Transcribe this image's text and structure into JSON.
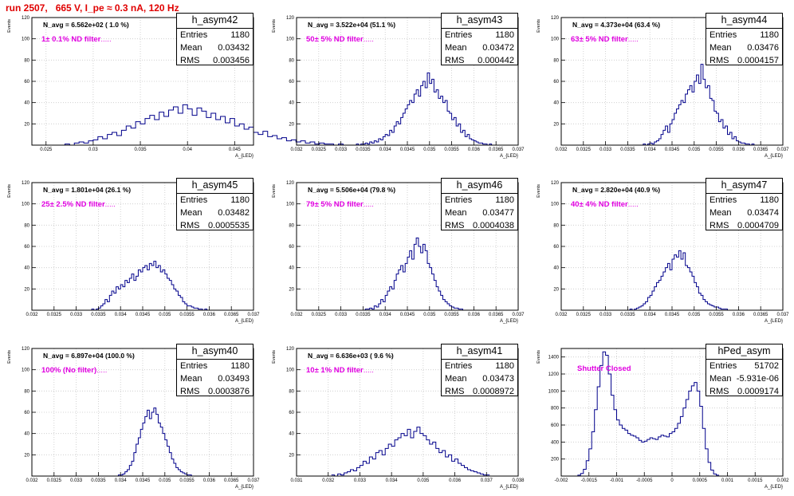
{
  "page_title": "run 2507,   665 V, I_pe ≈ 0.3 nA, 120 Hz",
  "colors": {
    "title": "#e00000",
    "hist_line": "#00008b",
    "grid": "#c8c8c8",
    "annotation": "#e000e0"
  },
  "chart_data": [
    {
      "type": "histogram",
      "title": "h_asym42",
      "ylabel": "Events",
      "xlabel": "A_{LED}",
      "xlim": [
        0.0235,
        0.047
      ],
      "ylim": [
        0,
        120
      ],
      "xticks": [
        0.025,
        0.03,
        0.035,
        0.04,
        0.045
      ],
      "xtick_labels": [
        "0.025",
        "0.03",
        "0.035",
        "0.04",
        "0.045"
      ],
      "yticks": [
        20,
        40,
        60,
        80,
        100,
        120
      ],
      "stats": {
        "Entries": "1180",
        "Mean": "0.03432",
        "RMS": "0.003456"
      },
      "navg_text": "N_avg = 6.562e+02 ( 1.0 %)",
      "filter_text": "1± 0.1% ND filter",
      "bins": {
        "start": 0.025,
        "width": 0.0005,
        "counts": [
          0,
          0,
          0,
          0,
          1,
          0,
          2,
          3,
          2,
          4,
          5,
          8,
          6,
          10,
          12,
          9,
          14,
          18,
          16,
          22,
          20,
          25,
          28,
          24,
          31,
          27,
          33,
          36,
          30,
          38,
          34,
          28,
          35,
          32,
          26,
          30,
          24,
          27,
          21,
          25,
          18,
          20,
          15,
          17,
          12,
          10,
          13,
          8,
          9,
          6,
          7,
          4,
          5,
          3,
          4,
          2,
          3,
          1,
          2,
          1,
          1,
          0,
          1,
          0,
          0,
          0,
          0,
          0,
          0,
          0
        ]
      },
      "grid": true
    },
    {
      "type": "histogram",
      "title": "h_asym43",
      "ylabel": "Events",
      "xlabel": "A_{LED}",
      "xlim": [
        0.032,
        0.037
      ],
      "ylim": [
        0,
        120
      ],
      "xticks": [
        0.032,
        0.0325,
        0.033,
        0.0335,
        0.034,
        0.0345,
        0.035,
        0.0355,
        0.036,
        0.0365,
        0.037
      ],
      "xtick_labels": [
        "0.032",
        "0.0325",
        "0.033",
        "0.0335",
        "0.034",
        "0.0345",
        "0.035",
        "0.0355",
        "0.036",
        "0.0365",
        "0.037"
      ],
      "yticks": [
        20,
        40,
        60,
        80,
        100,
        120
      ],
      "stats": {
        "Entries": "1180",
        "Mean": "0.03472",
        "RMS": "0.000442"
      },
      "navg_text": "N_avg = 3.522e+04 (51.1 %)",
      "filter_text": "50± 5% ND filter",
      "bins": {
        "start": 0.0333,
        "width": 5e-05,
        "counts": [
          0,
          1,
          0,
          1,
          1,
          2,
          1,
          3,
          2,
          4,
          3,
          6,
          5,
          8,
          10,
          9,
          14,
          12,
          18,
          22,
          20,
          26,
          30,
          34,
          38,
          42,
          40,
          48,
          52,
          46,
          56,
          60,
          54,
          68,
          58,
          62,
          50,
          52,
          44,
          46,
          40,
          42,
          32,
          30,
          24,
          26,
          18,
          20,
          12,
          14,
          8,
          10,
          6,
          5,
          4,
          3,
          2,
          2,
          1,
          1,
          0,
          1,
          0,
          0,
          0
        ]
      },
      "grid": true
    },
    {
      "type": "histogram",
      "title": "h_asym44",
      "ylabel": "Events",
      "xlabel": "A_{LED}",
      "xlim": [
        0.032,
        0.037
      ],
      "ylim": [
        0,
        120
      ],
      "xticks": [
        0.032,
        0.0325,
        0.033,
        0.0335,
        0.034,
        0.0345,
        0.035,
        0.0355,
        0.036,
        0.0365,
        0.037
      ],
      "xtick_labels": [
        "0.032",
        "0.0325",
        "0.033",
        "0.0335",
        "0.034",
        "0.0345",
        "0.035",
        "0.0355",
        "0.036",
        "0.0365",
        "0.037"
      ],
      "yticks": [
        20,
        40,
        60,
        80,
        100,
        120
      ],
      "stats": {
        "Entries": "1180",
        "Mean": "0.03476",
        "RMS": "0.0004157"
      },
      "navg_text": "N_avg = 4.373e+04 (63.4 %)",
      "filter_text": "63± 5% ND filter",
      "bins": {
        "start": 0.0338,
        "width": 5e-05,
        "counts": [
          0,
          1,
          0,
          1,
          2,
          1,
          3,
          4,
          6,
          10,
          14,
          18,
          12,
          20,
          24,
          30,
          34,
          38,
          42,
          40,
          48,
          52,
          56,
          50,
          60,
          66,
          58,
          76,
          62,
          54,
          56,
          44,
          42,
          32,
          30,
          22,
          24,
          16,
          18,
          10,
          12,
          6,
          8,
          4,
          3,
          2,
          2,
          1,
          1,
          0,
          1,
          0,
          0
        ]
      },
      "grid": true
    },
    {
      "type": "histogram",
      "title": "h_asym45",
      "ylabel": "Events",
      "xlabel": "A_{LED}",
      "xlim": [
        0.032,
        0.037
      ],
      "ylim": [
        0,
        120
      ],
      "xticks": [
        0.032,
        0.0325,
        0.033,
        0.0335,
        0.034,
        0.0345,
        0.035,
        0.0355,
        0.036,
        0.0365,
        0.037
      ],
      "xtick_labels": [
        "0.032",
        "0.0325",
        "0.033",
        "0.0335",
        "0.034",
        "0.0345",
        "0.035",
        "0.0355",
        "0.036",
        "0.0365",
        "0.037"
      ],
      "yticks": [
        20,
        40,
        60,
        80,
        100,
        120
      ],
      "stats": {
        "Entries": "1180",
        "Mean": "0.03482",
        "RMS": "0.0005535"
      },
      "navg_text": "N_avg = 1.801e+04 (26.1 %)",
      "filter_text": "25± 2.5% ND filter",
      "bins": {
        "start": 0.0333,
        "width": 5e-05,
        "counts": [
          0,
          1,
          0,
          1,
          2,
          4,
          6,
          10,
          8,
          14,
          18,
          16,
          22,
          20,
          24,
          22,
          28,
          26,
          30,
          34,
          28,
          32,
          38,
          36,
          40,
          42,
          38,
          44,
          42,
          46,
          40,
          42,
          36,
          38,
          34,
          30,
          28,
          24,
          20,
          18,
          14,
          12,
          8,
          6,
          4,
          4,
          3,
          2,
          2,
          1,
          1,
          0,
          1,
          0
        ]
      },
      "grid": true
    },
    {
      "type": "histogram",
      "title": "h_asym46",
      "ylabel": "Events",
      "xlabel": "A_{LED}",
      "xlim": [
        0.032,
        0.037
      ],
      "ylim": [
        0,
        120
      ],
      "xticks": [
        0.032,
        0.0325,
        0.033,
        0.0335,
        0.034,
        0.0345,
        0.035,
        0.0355,
        0.036,
        0.0365,
        0.037
      ],
      "xtick_labels": [
        "0.032",
        "0.0325",
        "0.033",
        "0.0335",
        "0.034",
        "0.0345",
        "0.035",
        "0.0355",
        "0.036",
        "0.0365",
        "0.037"
      ],
      "yticks": [
        20,
        40,
        60,
        80,
        100,
        120
      ],
      "stats": {
        "Entries": "1180",
        "Mean": "0.03477",
        "RMS": "0.0004038"
      },
      "navg_text": "N_avg = 5.506e+04 (79.8 %)",
      "filter_text": "79± 5% ND filter",
      "bins": {
        "start": 0.0335,
        "width": 5e-05,
        "counts": [
          0,
          1,
          1,
          2,
          1,
          4,
          3,
          6,
          10,
          8,
          14,
          18,
          22,
          20,
          28,
          34,
          38,
          42,
          36,
          44,
          50,
          56,
          48,
          62,
          68,
          60,
          54,
          62,
          56,
          44,
          40,
          34,
          28,
          22,
          18,
          14,
          10,
          8,
          6,
          4,
          3,
          2,
          2,
          1,
          1,
          0,
          0
        ]
      },
      "grid": true
    },
    {
      "type": "histogram",
      "title": "h_asym47",
      "ylabel": "Events",
      "xlabel": "A_{LED}",
      "xlim": [
        0.032,
        0.037
      ],
      "ylim": [
        0,
        120
      ],
      "xticks": [
        0.032,
        0.0325,
        0.033,
        0.0335,
        0.034,
        0.0345,
        0.035,
        0.0355,
        0.036,
        0.0365,
        0.037
      ],
      "xtick_labels": [
        "0.032",
        "0.0325",
        "0.033",
        "0.0335",
        "0.034",
        "0.0345",
        "0.035",
        "0.0355",
        "0.036",
        "0.0365",
        "0.037"
      ],
      "yticks": [
        20,
        40,
        60,
        80,
        100,
        120
      ],
      "stats": {
        "Entries": "1180",
        "Mean": "0.03474",
        "RMS": "0.0004709"
      },
      "navg_text": "N_avg = 2.820e+04 (40.9 %)",
      "filter_text": "40± 4% ND filter",
      "bins": {
        "start": 0.0335,
        "width": 5e-05,
        "counts": [
          0,
          1,
          0,
          1,
          2,
          3,
          4,
          6,
          8,
          12,
          14,
          18,
          22,
          26,
          28,
          32,
          36,
          40,
          44,
          38,
          48,
          52,
          50,
          56,
          48,
          54,
          42,
          40,
          36,
          32,
          26,
          22,
          16,
          14,
          10,
          8,
          6,
          5,
          4,
          3,
          3,
          2,
          1,
          1,
          1,
          0
        ]
      },
      "grid": true
    },
    {
      "type": "histogram",
      "title": "h_asym40",
      "ylabel": "Events",
      "xlabel": "A_{LED}",
      "xlim": [
        0.032,
        0.037
      ],
      "ylim": [
        0,
        120
      ],
      "xticks": [
        0.032,
        0.0325,
        0.033,
        0.0335,
        0.034,
        0.0345,
        0.035,
        0.0355,
        0.036,
        0.0365,
        0.037
      ],
      "xtick_labels": [
        "0.032",
        "0.0325",
        "0.033",
        "0.0335",
        "0.034",
        "0.0345",
        "0.035",
        "0.0355",
        "0.036",
        "0.0365",
        "0.037"
      ],
      "yticks": [
        20,
        40,
        60,
        80,
        100,
        120
      ],
      "stats": {
        "Entries": "1180",
        "Mean": "0.03493",
        "RMS": "0.0003876"
      },
      "navg_text": "N_avg = 6.897e+04 (100.0 %)",
      "filter_text": "100% (No filter)",
      "bins": {
        "start": 0.0339,
        "width": 5e-05,
        "counts": [
          0,
          1,
          1,
          2,
          4,
          6,
          10,
          14,
          22,
          30,
          36,
          44,
          50,
          56,
          62,
          54,
          60,
          64,
          58,
          50,
          46,
          40,
          34,
          28,
          22,
          16,
          12,
          8,
          6,
          4,
          3,
          2,
          1,
          1,
          0
        ]
      },
      "grid": true
    },
    {
      "type": "histogram",
      "title": "h_asym41",
      "ylabel": "Events",
      "xlabel": "A_{LED}",
      "xlim": [
        0.031,
        0.038
      ],
      "ylim": [
        0,
        120
      ],
      "xticks": [
        0.031,
        0.032,
        0.033,
        0.034,
        0.035,
        0.036,
        0.037,
        0.038
      ],
      "xtick_labels": [
        "0.031",
        "0.032",
        "0.033",
        "0.034",
        "0.035",
        "0.036",
        "0.037",
        "0.038"
      ],
      "yticks": [
        20,
        40,
        60,
        80,
        100,
        120
      ],
      "stats": {
        "Entries": "1180",
        "Mean": "0.03473",
        "RMS": "0.0008972"
      },
      "navg_text": "N_avg = 6.636e+03 ( 9.6 %)",
      "filter_text": "10± 1% ND filter",
      "bins": {
        "start": 0.0321,
        "width": 0.0001,
        "counts": [
          1,
          0,
          2,
          1,
          3,
          4,
          6,
          5,
          8,
          10,
          14,
          12,
          18,
          16,
          22,
          24,
          20,
          26,
          30,
          28,
          34,
          36,
          40,
          38,
          44,
          36,
          42,
          46,
          40,
          38,
          34,
          30,
          32,
          26,
          22,
          24,
          18,
          20,
          14,
          16,
          12,
          10,
          8,
          6,
          5,
          4,
          3,
          2,
          1,
          1
        ]
      },
      "grid": true
    },
    {
      "type": "histogram",
      "title": "hPed_asym",
      "ylabel": "Events",
      "xlabel": "A_{LED}",
      "xlim": [
        -0.002,
        0.002
      ],
      "ylim": [
        0,
        1500
      ],
      "xticks": [
        -0.002,
        -0.0015,
        -0.001,
        -0.0005,
        0,
        0.0005,
        0.001,
        0.0015,
        0.002
      ],
      "xtick_labels": [
        "-0.002",
        "-0.0015",
        "-0.001",
        "-0.0005",
        "0",
        "0.0005",
        "0.001",
        "0.0015",
        "0.002"
      ],
      "yticks": [
        200,
        400,
        600,
        800,
        1000,
        1200,
        1400
      ],
      "stats": {
        "Entries": "51702",
        "Mean": "-5.931e-06",
        "RMS": "0.0009174"
      },
      "annotation_text": "Shutter Closed",
      "bins": {
        "start": -0.00175,
        "width": 5e-05,
        "counts": [
          0,
          10,
          30,
          80,
          180,
          320,
          520,
          780,
          1050,
          1300,
          1460,
          1420,
          1200,
          950,
          780,
          660,
          600,
          560,
          540,
          500,
          480,
          470,
          450,
          420,
          400,
          410,
          430,
          450,
          440,
          430,
          460,
          480,
          470,
          460,
          500,
          520,
          560,
          620,
          700,
          800,
          900,
          1000,
          1060,
          1100,
          1000,
          820,
          560,
          320,
          160,
          70,
          25,
          10
        ]
      },
      "grid": true
    }
  ]
}
